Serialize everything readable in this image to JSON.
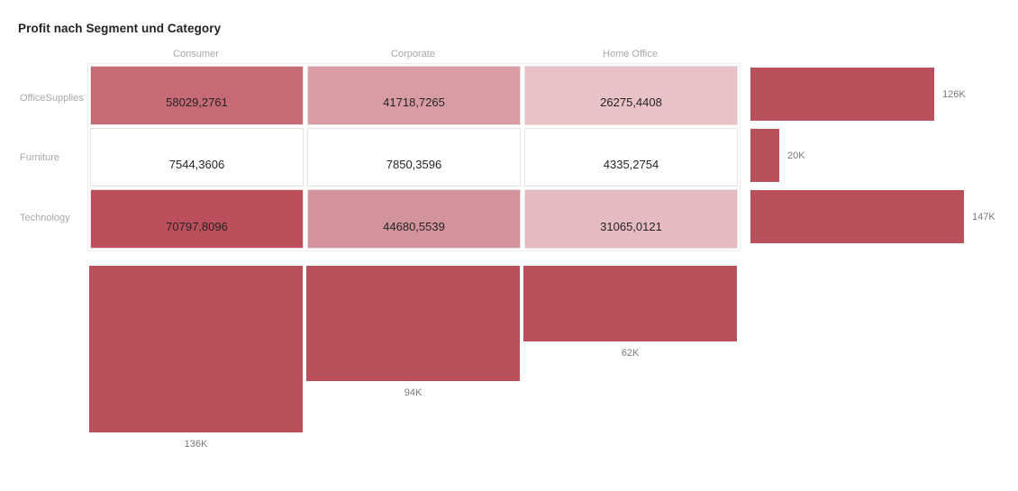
{
  "title": "Profit nach Segment und Category",
  "colors": {
    "bar": "#b9505c",
    "axis_label": "#a8a8a8",
    "value_text": "#252423",
    "total_label": "#7a7a7a"
  },
  "chart_data": {
    "type": "heatmap",
    "title": "Profit nach Segment und Category",
    "columns": [
      "Consumer",
      "Corporate",
      "Home Office"
    ],
    "rows": [
      "OfficeSupplies",
      "Furniture",
      "Technology"
    ],
    "values": [
      [
        58029.2761,
        41718.7265,
        26275.4408
      ],
      [
        7544.3606,
        7850.3596,
        4335.2754
      ],
      [
        70797.8096,
        44680.5539,
        31065.0121
      ]
    ],
    "cell_labels": [
      [
        "58029,2761",
        "41718,7265",
        "26275,4408"
      ],
      [
        "7544,3606",
        "7850,3596",
        "4335,2754"
      ],
      [
        "70797,8096",
        "44680,5539",
        "31065,0121"
      ]
    ],
    "cell_colors": [
      [
        "#c66a76",
        "#d99ca4",
        "#e9c2c8"
      ],
      [
        "#ffffff",
        "#ffffff",
        "#ffffff"
      ],
      [
        "#bc4f5c",
        "#d3939b",
        "#e5bbc1"
      ]
    ],
    "row_totals": {
      "labels": [
        "126K",
        "20K",
        "147K"
      ],
      "values": [
        126023,
        19730,
        146543
      ]
    },
    "col_totals": {
      "labels": [
        "136K",
        "94K",
        "62K"
      ],
      "values": [
        136371,
        94249,
        61676
      ]
    },
    "legend": "none",
    "grid": false
  }
}
